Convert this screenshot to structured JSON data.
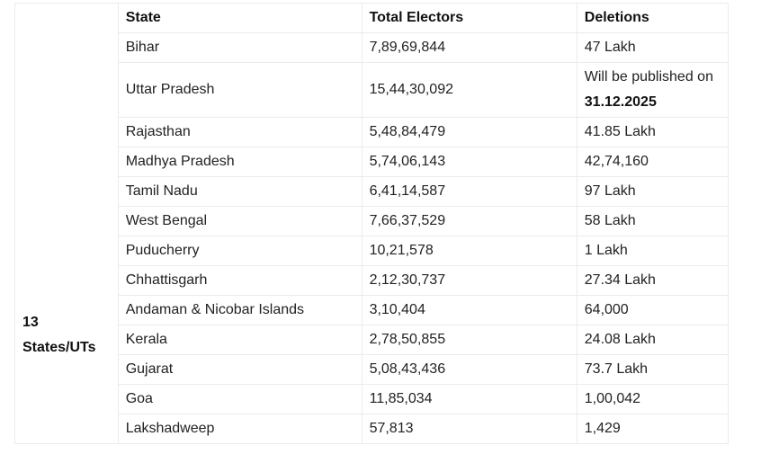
{
  "group_label_line1": "13",
  "group_label_line2": "States/UTs",
  "headers": {
    "state": "State",
    "total": "Total Electors",
    "deletions": "Deletions"
  },
  "rows": [
    {
      "state": "Bihar",
      "total": "7,89,69,844",
      "deletions": "47 Lakh"
    },
    {
      "state": "Uttar Pradesh",
      "total": "15,44,30,092",
      "deletions_prefix": "Will be published on",
      "deletions_date": "31.12.2025"
    },
    {
      "state": "Rajasthan",
      "total": "5,48,84,479",
      "deletions": "41.85 Lakh"
    },
    {
      "state": "Madhya Pradesh",
      "total": "5,74,06,143",
      "deletions": "42,74,160"
    },
    {
      "state": "Tamil Nadu",
      "total": "6,41,14,587",
      "deletions": "97 Lakh"
    },
    {
      "state": "West Bengal",
      "total": "7,66,37,529",
      "deletions": "58 Lakh"
    },
    {
      "state": "Puducherry",
      "total": "10,21,578",
      "deletions": "1 Lakh"
    },
    {
      "state": "Chhattisgarh",
      "total": "2,12,30,737",
      "deletions": "27.34 Lakh"
    },
    {
      "state": "Andaman & Nicobar Islands",
      "total": "3,10,404",
      "deletions": "64,000"
    },
    {
      "state": "Kerala",
      "total": "2,78,50,855",
      "deletions": "24.08 Lakh"
    },
    {
      "state": "Gujarat",
      "total": "5,08,43,436",
      "deletions": "73.7 Lakh"
    },
    {
      "state": "Goa",
      "total": "11,85,034",
      "deletions": "1,00,042"
    },
    {
      "state": "Lakshadweep",
      "total": "57,813",
      "deletions": "1,429"
    }
  ]
}
